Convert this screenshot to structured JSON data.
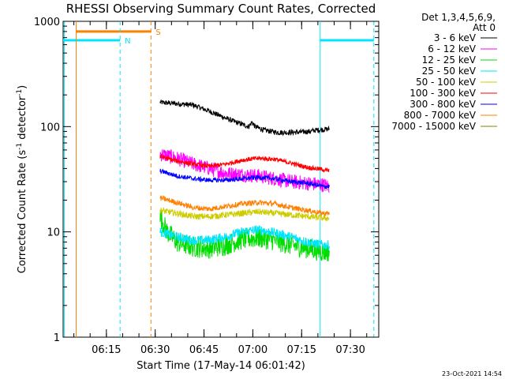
{
  "chart_data": {
    "type": "line",
    "title": "RHESSI Observing Summary Count Rates, Corrected",
    "xlabel": "Start Time (17-May-14 06:01:42)",
    "ylabel_main": "Corrected Count Rate (s",
    "ylabel_sup1": "-1",
    "ylabel_mid": " detector",
    "ylabel_sup2": "-1",
    "ylabel_end": ")",
    "yscale": "log",
    "ylim": [
      1,
      1000
    ],
    "xlim_minutes": [
      0,
      97
    ],
    "x_start_offset_minutes": 1.7,
    "y_ticks": [
      {
        "value": 1,
        "label": "1"
      },
      {
        "value": 10,
        "label": "10"
      },
      {
        "value": 100,
        "label": "100"
      },
      {
        "value": 1000,
        "label": "1000"
      }
    ],
    "x_ticks": [
      {
        "value": 15,
        "label": "06:15"
      },
      {
        "value": 30,
        "label": "06:30"
      },
      {
        "value": 45,
        "label": "06:45"
      },
      {
        "value": 60,
        "label": "07:00"
      },
      {
        "value": 75,
        "label": "07:15"
      },
      {
        "value": 90,
        "label": "07:30"
      }
    ],
    "legend": {
      "header_line1": "Det 1,3,4,5,6,9,",
      "header_line2": "Att 0",
      "position": "right"
    },
    "footer_date": "23-Oct-2021 14:54",
    "flags": [
      {
        "label": "S",
        "color": "#ff8000",
        "start": 4,
        "end": 27,
        "level": 800
      },
      {
        "label": "N",
        "color": "#00e5ff",
        "start": 0,
        "end": 17.5,
        "level": 660
      },
      {
        "label": "",
        "color": "#00e5ff",
        "start": 79,
        "end": 95.5,
        "level": 660
      }
    ],
    "vlines": [
      {
        "x": 0.4,
        "color": "#00e5ff",
        "style": "solid"
      },
      {
        "x": 4,
        "color": "#ff8000",
        "style": "solid"
      },
      {
        "x": 17.5,
        "color": "#00e5ff",
        "style": "dashed"
      },
      {
        "x": 27,
        "color": "#ff8000",
        "style": "dashed"
      },
      {
        "x": 79,
        "color": "#00e5ff",
        "style": "solid"
      },
      {
        "x": 95.5,
        "color": "#00e5ff",
        "style": "dashed"
      }
    ],
    "data_start": 29.8,
    "data_end": 81.8,
    "series": [
      {
        "name": "3 - 6 keV",
        "color": "#000000",
        "noise": 0.025,
        "points": [
          [
            29.8,
            170
          ],
          [
            35,
            165
          ],
          [
            40,
            160
          ],
          [
            45,
            140
          ],
          [
            50,
            120
          ],
          [
            55,
            105
          ],
          [
            57,
            100
          ],
          [
            58,
            110
          ],
          [
            59,
            100
          ],
          [
            62,
            92
          ],
          [
            66,
            88
          ],
          [
            70,
            88
          ],
          [
            74,
            89
          ],
          [
            76,
            90
          ],
          [
            77,
            92
          ],
          [
            79,
            93
          ],
          [
            81.8,
            95
          ]
        ]
      },
      {
        "name": "6 - 12 keV",
        "color": "#ff00ff",
        "noise": 0.07,
        "points": [
          [
            29.8,
            55
          ],
          [
            35,
            50
          ],
          [
            40,
            44
          ],
          [
            45,
            40
          ],
          [
            50,
            36
          ],
          [
            55,
            35
          ],
          [
            60,
            34
          ],
          [
            65,
            32
          ],
          [
            70,
            30
          ],
          [
            75,
            29
          ],
          [
            80,
            28
          ],
          [
            81.8,
            27
          ]
        ]
      },
      {
        "name": "12 - 25 keV",
        "color": "#00dd00",
        "noise": 0.1,
        "points": [
          [
            29.8,
            14
          ],
          [
            32,
            10
          ],
          [
            35,
            8
          ],
          [
            40,
            7.2
          ],
          [
            45,
            7
          ],
          [
            50,
            7.5
          ],
          [
            55,
            8.5
          ],
          [
            60,
            8.8
          ],
          [
            65,
            8.3
          ],
          [
            70,
            7.5
          ],
          [
            75,
            7
          ],
          [
            80,
            6.5
          ],
          [
            81.8,
            6.5
          ]
        ]
      },
      {
        "name": "25 - 50 keV",
        "color": "#00e5ff",
        "noise": 0.045,
        "points": [
          [
            29.8,
            10
          ],
          [
            35,
            9
          ],
          [
            40,
            8.3
          ],
          [
            45,
            8.4
          ],
          [
            50,
            9
          ],
          [
            55,
            10
          ],
          [
            60,
            10.5
          ],
          [
            65,
            9.8
          ],
          [
            70,
            9
          ],
          [
            75,
            8
          ],
          [
            80,
            7.5
          ],
          [
            81.8,
            7.5
          ]
        ]
      },
      {
        "name": "50 - 100 keV",
        "color": "#cccc00",
        "noise": 0.03,
        "points": [
          [
            29.8,
            16
          ],
          [
            35,
            15
          ],
          [
            40,
            14
          ],
          [
            45,
            14
          ],
          [
            50,
            14.5
          ],
          [
            55,
            15
          ],
          [
            60,
            15.5
          ],
          [
            65,
            15
          ],
          [
            70,
            14.5
          ],
          [
            75,
            14
          ],
          [
            80,
            13.5
          ],
          [
            81.8,
            13.5
          ]
        ]
      },
      {
        "name": "100 - 300 keV",
        "color": "#ff0000",
        "noise": 0.022,
        "points": [
          [
            29.8,
            52
          ],
          [
            35,
            47
          ],
          [
            40,
            44
          ],
          [
            45,
            42
          ],
          [
            50,
            44
          ],
          [
            55,
            48
          ],
          [
            60,
            50
          ],
          [
            65,
            49
          ],
          [
            70,
            45
          ],
          [
            75,
            41
          ],
          [
            80,
            39
          ],
          [
            81.8,
            38
          ]
        ]
      },
      {
        "name": "300 - 800 keV",
        "color": "#0000ff",
        "noise": 0.022,
        "points": [
          [
            29.8,
            38
          ],
          [
            35,
            34
          ],
          [
            40,
            32
          ],
          [
            45,
            31
          ],
          [
            50,
            31
          ],
          [
            55,
            32
          ],
          [
            60,
            33
          ],
          [
            65,
            32
          ],
          [
            70,
            30
          ],
          [
            75,
            29
          ],
          [
            80,
            27
          ],
          [
            81.8,
            27
          ]
        ]
      },
      {
        "name": "800 - 7000 keV",
        "color": "#ff8000",
        "noise": 0.025,
        "points": [
          [
            29.8,
            21
          ],
          [
            35,
            19
          ],
          [
            40,
            17
          ],
          [
            45,
            16.5
          ],
          [
            50,
            17.5
          ],
          [
            55,
            18.5
          ],
          [
            60,
            19
          ],
          [
            65,
            18.5
          ],
          [
            70,
            17
          ],
          [
            75,
            16
          ],
          [
            80,
            15
          ],
          [
            81.8,
            15
          ]
        ]
      },
      {
        "name": "7000 - 15000 keV",
        "color": "#808000",
        "noise": 0.02,
        "points": []
      }
    ]
  }
}
